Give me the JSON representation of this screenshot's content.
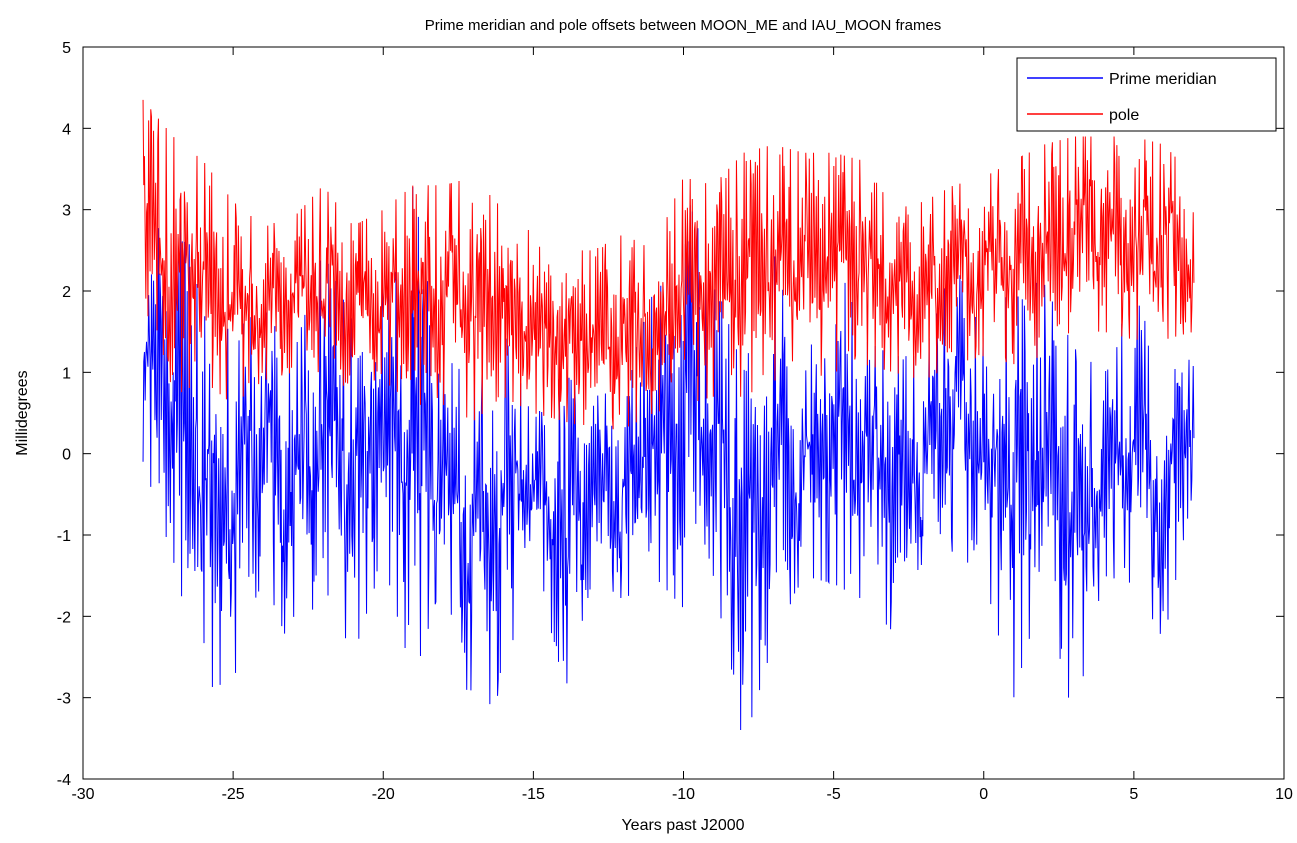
{
  "chart_data": {
    "type": "line",
    "title": "Prime meridian and pole offsets between MOON_ME and IAU_MOON frames",
    "xlabel": "Years past J2000",
    "ylabel": "Millidegrees",
    "xlim": [
      -30,
      10
    ],
    "ylim": [
      -4,
      5
    ],
    "xticks": [
      -30,
      -25,
      -20,
      -15,
      -10,
      -5,
      0,
      5,
      10
    ],
    "yticks": [
      -4,
      -3,
      -2,
      -1,
      0,
      1,
      2,
      3,
      4,
      5
    ],
    "xtick_labels": [
      "-30",
      "-25",
      "-20",
      "-15",
      "-10",
      "-5",
      "0",
      "5",
      "10"
    ],
    "ytick_labels": [
      "-4",
      "-3",
      "-2",
      "-1",
      "0",
      "1",
      "2",
      "3",
      "4",
      "5"
    ],
    "grid": false,
    "legend_position": "top-right",
    "x_range_of_data": [
      -28,
      7
    ],
    "series": [
      {
        "name": "Prime meridian",
        "color": "#0000ff",
        "x": [
          -28,
          -27,
          -26,
          -25,
          -24,
          -23,
          -22,
          -21,
          -20,
          -19,
          -18,
          -17,
          -16,
          -15,
          -14,
          -13,
          -12,
          -11,
          -10,
          -9,
          -8,
          -7,
          -6,
          -5,
          -4,
          -3,
          -2,
          -1,
          0,
          1,
          2,
          3,
          4,
          5,
          6,
          7
        ],
        "envelope_max": [
          1.9,
          3.6,
          1.7,
          1.5,
          1.8,
          1.2,
          2.5,
          1.6,
          2.1,
          3.3,
          1.2,
          0.9,
          1.5,
          0.4,
          1.0,
          0.7,
          0.8,
          2.0,
          3.3,
          2.2,
          1.0,
          2.5,
          0.9,
          2.6,
          1.4,
          1.2,
          1.2,
          2.4,
          1.4,
          2.1,
          2.1,
          1.3,
          1.0,
          2.0,
          1.0,
          2.0
        ],
        "envelope_min": [
          -0.1,
          -1.3,
          -2.9,
          -2.8,
          -1.5,
          -2.5,
          -1.6,
          -2.5,
          -1.3,
          -2.8,
          -1.5,
          -3.3,
          -2.9,
          -1.0,
          -3.0,
          -1.5,
          -1.8,
          -1.5,
          -1.9,
          -1.5,
          -3.6,
          -2.3,
          -1.5,
          -1.6,
          -1.8,
          -2.2,
          -1.3,
          -1.2,
          -1.5,
          -3.0,
          -1.6,
          -3.3,
          -1.5,
          -1.6,
          -2.3,
          -0.4
        ]
      },
      {
        "name": "pole",
        "color": "#ff0000",
        "x": [
          -28,
          -27,
          -26,
          -25,
          -24,
          -23,
          -22,
          -21,
          -20,
          -19,
          -18,
          -17,
          -16,
          -15,
          -14,
          -13,
          -12,
          -11,
          -10,
          -9,
          -8,
          -7,
          -6,
          -5,
          -4,
          -3,
          -2,
          -1,
          0,
          1,
          2,
          3,
          4,
          5,
          6,
          7
        ],
        "envelope_max": [
          4.35,
          3.9,
          3.6,
          3.1,
          2.8,
          2.9,
          3.3,
          2.8,
          3.0,
          3.3,
          3.3,
          3.4,
          3.0,
          2.7,
          2.5,
          2.5,
          2.7,
          2.5,
          3.4,
          3.3,
          3.7,
          3.8,
          3.7,
          3.7,
          3.6,
          3.0,
          3.1,
          3.3,
          3.4,
          3.6,
          3.8,
          3.9,
          3.9,
          3.9,
          3.8,
          3.4
        ],
        "envelope_min": [
          1.2,
          0.7,
          0.9,
          0.6,
          0.9,
          1.0,
          0.7,
          0.9,
          0.9,
          0.6,
          0.6,
          0.4,
          0.7,
          0.5,
          0.4,
          0.3,
          0.3,
          0.5,
          0.6,
          0.7,
          0.7,
          0.9,
          0.9,
          1.0,
          1.1,
          1.0,
          0.9,
          1.1,
          1.2,
          1.1,
          1.2,
          1.5,
          1.5,
          1.4,
          1.4,
          1.5
        ]
      }
    ]
  }
}
